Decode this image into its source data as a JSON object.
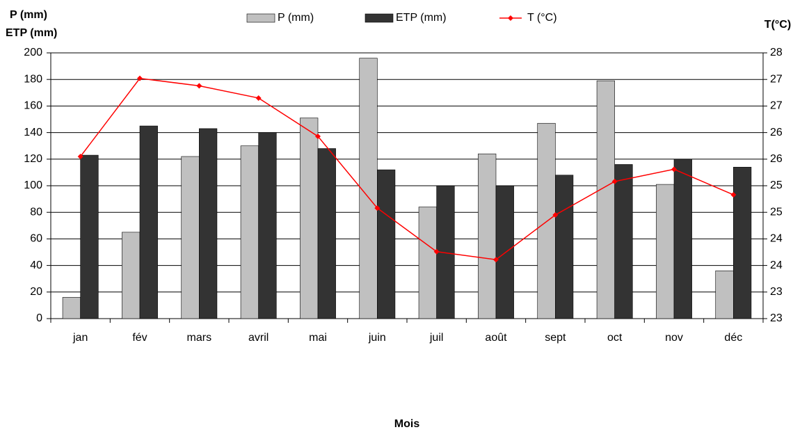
{
  "chart_data": {
    "type": "bar",
    "y_label_lines": [
      "P (mm)",
      "ETP (mm)"
    ],
    "y2_label": "T(°C)",
    "x_label": "Mois",
    "categories": [
      "jan",
      "fév",
      "mars",
      "avril",
      "mai",
      "juin",
      "juil",
      "août",
      "sept",
      "oct",
      "nov",
      "déc"
    ],
    "series": [
      {
        "name": "P (mm)",
        "type": "bar",
        "color": "#c0c0c0",
        "values": [
          16,
          65,
          122,
          130,
          151,
          196,
          84,
          124,
          147,
          179,
          101,
          36
        ]
      },
      {
        "name": "ETP (mm)",
        "type": "bar",
        "color": "#333333",
        "values": [
          123,
          145,
          143,
          140,
          128,
          112,
          100,
          100,
          108,
          116,
          120,
          114
        ]
      },
      {
        "name": "T (°C)",
        "type": "line",
        "axis": "y2",
        "color": "#ff0000",
        "values": [
          25.55,
          27.02,
          26.88,
          26.65,
          25.93,
          24.58,
          23.76,
          23.61,
          24.45,
          25.08,
          25.31,
          24.83
        ]
      }
    ],
    "ylim": [
      0,
      200
    ],
    "yticks": [
      0,
      20,
      40,
      60,
      80,
      100,
      120,
      140,
      160,
      180,
      200
    ],
    "y2lim": [
      22.5,
      27.5
    ],
    "y2ticks": [
      {
        "value": 22.5,
        "label": "23"
      },
      23,
      {
        "value": 23.5,
        "label": "24"
      },
      24,
      {
        "value": 24.5,
        "label": "25"
      },
      25,
      {
        "value": 25.5,
        "label": "26"
      },
      26,
      {
        "value": 26.5,
        "label": "27"
      },
      27,
      {
        "value": 27.5,
        "label": "28"
      }
    ],
    "grid": true
  }
}
